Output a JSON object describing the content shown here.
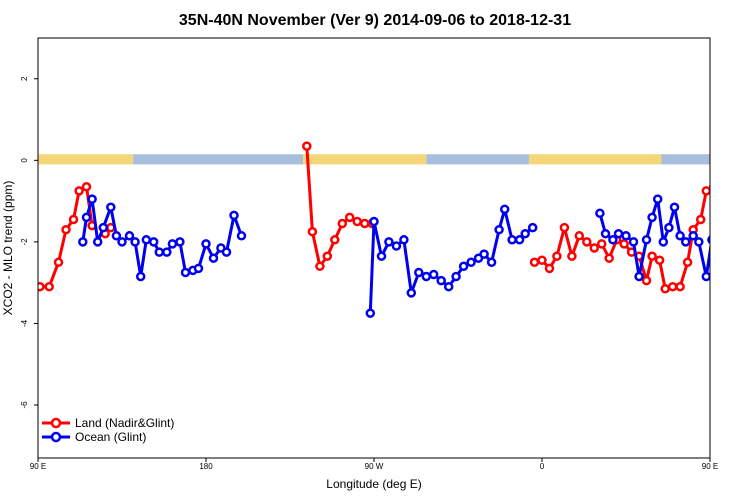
{
  "chart_data": {
    "type": "line",
    "title": "35N-40N November (Ver 9)   2014-09-06 to 2018-12-31",
    "xlabel": "Longitude (deg E)",
    "ylabel": "XCO2 - MLO trend (ppm)",
    "xlim": [
      90,
      450
    ],
    "ylim": [
      -7.3,
      3.0
    ],
    "x_ticks": [
      {
        "value": 90,
        "label": "90 E"
      },
      {
        "value": 180,
        "label": "180"
      },
      {
        "value": 270,
        "label": "90 W"
      },
      {
        "value": 360,
        "label": "0"
      },
      {
        "value": 450,
        "label": "90 E"
      }
    ],
    "y_ticks": [
      {
        "value": 2,
        "label": "2"
      },
      {
        "value": 0,
        "label": "0"
      },
      {
        "value": -2,
        "label": "-2"
      },
      {
        "value": -4,
        "label": "-4"
      },
      {
        "value": -6,
        "label": "-6"
      }
    ],
    "grid": false,
    "legend_position": "bottom-left",
    "surface_band": {
      "y_range": [
        -0.1,
        0.15
      ],
      "land_color": "#f5d77a",
      "ocean_color": "#a7bedc",
      "segments": [
        {
          "from": 90,
          "to": 141,
          "kind": "land"
        },
        {
          "from": 141,
          "to": 232,
          "kind": "ocean"
        },
        {
          "from": 232,
          "to": 298,
          "kind": "land"
        },
        {
          "from": 298,
          "to": 353,
          "kind": "ocean"
        },
        {
          "from": 353,
          "to": 424,
          "kind": "land"
        },
        {
          "from": 424,
          "to": 450,
          "kind": "ocean"
        }
      ]
    },
    "series": [
      {
        "name": "Land (Nadir&Glint)",
        "color": "#ff0000",
        "segments": [
          [
            [
              91,
              -3.1
            ],
            [
              96,
              -3.1
            ],
            [
              101,
              -2.5
            ],
            [
              105,
              -1.7
            ],
            [
              109,
              -1.45
            ],
            [
              112,
              -0.75
            ],
            [
              116,
              -0.65
            ],
            [
              119,
              -1.6
            ]
          ],
          [
            [
              126,
              -1.8
            ],
            [
              129,
              -1.65
            ]
          ],
          [
            [
              234,
              0.35
            ],
            [
              237,
              -1.75
            ],
            [
              241,
              -2.6
            ],
            [
              245,
              -2.35
            ],
            [
              249,
              -1.95
            ],
            [
              253,
              -1.55
            ],
            [
              257,
              -1.4
            ],
            [
              261,
              -1.5
            ],
            [
              265,
              -1.55
            ],
            [
              269,
              -1.55
            ]
          ],
          [
            [
              356,
              -2.5
            ],
            [
              360,
              -2.45
            ],
            [
              364,
              -2.65
            ],
            [
              368,
              -2.35
            ],
            [
              372,
              -1.65
            ],
            [
              376,
              -2.35
            ],
            [
              380,
              -1.85
            ],
            [
              384,
              -2.0
            ],
            [
              388,
              -2.15
            ],
            [
              392,
              -2.05
            ],
            [
              396,
              -2.4
            ],
            [
              400,
              -1.95
            ],
            [
              404,
              -2.05
            ],
            [
              408,
              -2.25
            ],
            [
              412,
              -2.35
            ],
            [
              416,
              -2.95
            ],
            [
              419,
              -2.35
            ],
            [
              423,
              -2.45
            ],
            [
              426,
              -3.15
            ],
            [
              430,
              -3.1
            ],
            [
              434,
              -3.1
            ],
            [
              438,
              -2.5
            ],
            [
              441,
              -1.7
            ],
            [
              445,
              -1.45
            ],
            [
              448,
              -0.75
            ],
            [
              452,
              -0.65
            ],
            [
              455,
              -1.6
            ],
            [
              459,
              -1.75
            ],
            [
              463,
              -1.65
            ]
          ]
        ]
      },
      {
        "name": "Ocean (Glint)",
        "color": "#0000ee",
        "segments": [
          [
            [
              114,
              -2.0
            ],
            [
              116,
              -1.4
            ],
            [
              119,
              -0.95
            ],
            [
              122,
              -2.0
            ],
            [
              125,
              -1.65
            ],
            [
              129,
              -1.15
            ],
            [
              132,
              -1.85
            ],
            [
              135,
              -2.0
            ],
            [
              139,
              -1.85
            ],
            [
              142,
              -2.0
            ],
            [
              145,
              -2.85
            ],
            [
              148,
              -1.95
            ],
            [
              152,
              -2.0
            ],
            [
              155,
              -2.25
            ],
            [
              159,
              -2.25
            ],
            [
              162,
              -2.05
            ],
            [
              166,
              -2.0
            ],
            [
              169,
              -2.75
            ],
            [
              173,
              -2.7
            ],
            [
              176,
              -2.65
            ],
            [
              180,
              -2.05
            ],
            [
              184,
              -2.4
            ],
            [
              188,
              -2.15
            ],
            [
              191,
              -2.25
            ],
            [
              195,
              -1.35
            ],
            [
              199,
              -1.85
            ]
          ],
          [
            [
              268,
              -3.75
            ],
            [
              270,
              -1.5
            ],
            [
              274,
              -2.35
            ],
            [
              278,
              -2.0
            ],
            [
              282,
              -2.1
            ],
            [
              286,
              -1.95
            ],
            [
              290,
              -3.25
            ],
            [
              294,
              -2.75
            ],
            [
              298,
              -2.85
            ],
            [
              302,
              -2.8
            ],
            [
              306,
              -2.95
            ],
            [
              310,
              -3.1
            ],
            [
              314,
              -2.85
            ],
            [
              318,
              -2.6
            ],
            [
              322,
              -2.5
            ],
            [
              326,
              -2.4
            ],
            [
              329,
              -2.3
            ],
            [
              333,
              -2.5
            ],
            [
              337,
              -1.7
            ],
            [
              340,
              -1.2
            ],
            [
              344,
              -1.95
            ],
            [
              348,
              -1.95
            ],
            [
              351,
              -1.8
            ],
            [
              355,
              -1.65
            ]
          ],
          [
            [
              391,
              -1.3
            ],
            [
              394,
              -1.8
            ],
            [
              398,
              -1.95
            ],
            [
              401,
              -1.8
            ],
            [
              405,
              -1.85
            ],
            [
              409,
              -2.0
            ],
            [
              412,
              -2.85
            ],
            [
              416,
              -1.95
            ],
            [
              419,
              -1.4
            ],
            [
              422,
              -0.95
            ],
            [
              425,
              -2.0
            ],
            [
              428,
              -1.65
            ],
            [
              431,
              -1.15
            ],
            [
              434,
              -1.85
            ],
            [
              437,
              -2.0
            ],
            [
              441,
              -1.85
            ],
            [
              444,
              -2.0
            ],
            [
              448,
              -2.85
            ],
            [
              451,
              -1.95
            ],
            [
              455,
              -2.05
            ]
          ]
        ]
      }
    ]
  }
}
